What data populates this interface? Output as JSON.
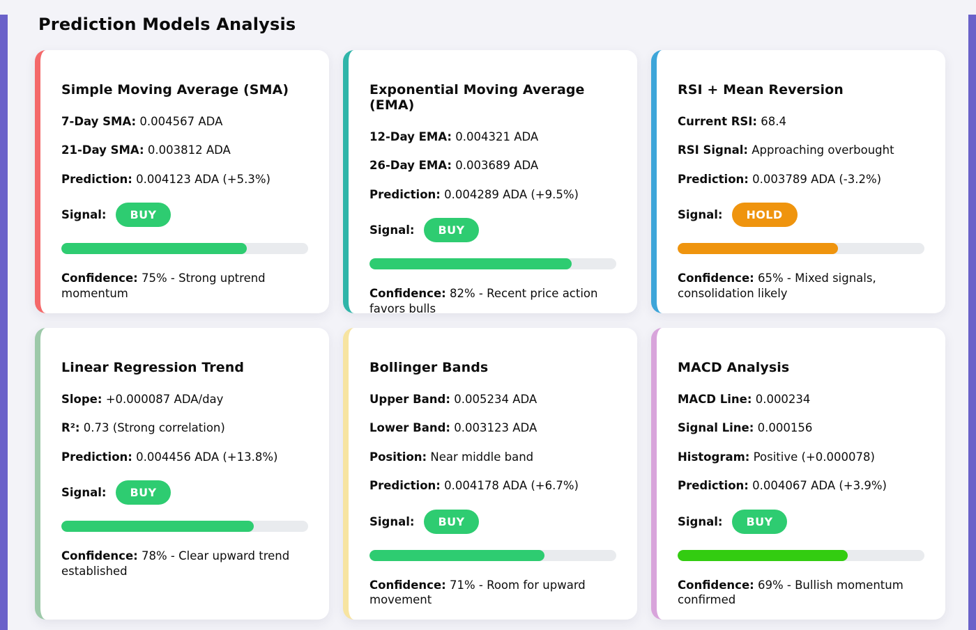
{
  "page": {
    "title": "Prediction Models Analysis",
    "background_color": "#F3F3F8",
    "edge_bar_color": "#6A61C9",
    "progress_track_color": "#E9EBEE"
  },
  "cards": [
    {
      "id": "sma",
      "title": "Simple Moving Average (SMA)",
      "accent_color": "#F4696A",
      "rows": [
        {
          "label": "7-Day SMA:",
          "value": "0.004567 ADA"
        },
        {
          "label": "21-Day SMA:",
          "value": "0.003812 ADA"
        },
        {
          "label": "Prediction:",
          "value": "0.004123 ADA (+5.3%)"
        }
      ],
      "signal_label": "Signal:",
      "signal": "BUY",
      "signal_color": "#2ECC71",
      "confidence_percent": 75,
      "bar_color": "#2ECC71",
      "confidence_label": "Confidence:",
      "confidence_text": "75% - Strong uptrend momentum"
    },
    {
      "id": "ema",
      "title": "Exponential Moving Average (EMA)",
      "accent_color": "#2FB5A9",
      "rows": [
        {
          "label": "12-Day EMA:",
          "value": "0.004321 ADA"
        },
        {
          "label": "26-Day EMA:",
          "value": "0.003689 ADA"
        },
        {
          "label": "Prediction:",
          "value": "0.004289 ADA (+9.5%)"
        }
      ],
      "signal_label": "Signal:",
      "signal": "BUY",
      "signal_color": "#2ECC71",
      "confidence_percent": 82,
      "bar_color": "#2ECC71",
      "confidence_label": "Confidence:",
      "confidence_text": "82% - Recent price action favors bulls"
    },
    {
      "id": "rsi",
      "title": "RSI + Mean Reversion",
      "accent_color": "#3DA5D9",
      "rows": [
        {
          "label": "Current RSI:",
          "value": "68.4"
        },
        {
          "label": "RSI Signal:",
          "value": "Approaching overbought"
        },
        {
          "label": "Prediction:",
          "value": "0.003789 ADA (-3.2%)"
        }
      ],
      "signal_label": "Signal:",
      "signal": "HOLD",
      "signal_color": "#EF940E",
      "confidence_percent": 65,
      "bar_color": "#EF940E",
      "confidence_label": "Confidence:",
      "confidence_text": "65% - Mixed signals, consolidation likely"
    },
    {
      "id": "linear-regression",
      "title": "Linear Regression Trend",
      "accent_color": "#9DC9A9",
      "rows": [
        {
          "label": "Slope:",
          "value": "+0.000087 ADA/day"
        },
        {
          "label": "R²:",
          "value": "0.73 (Strong correlation)"
        },
        {
          "label": "Prediction:",
          "value": "0.004456 ADA (+13.8%)"
        }
      ],
      "signal_label": "Signal:",
      "signal": "BUY",
      "signal_color": "#2ECC71",
      "confidence_percent": 78,
      "bar_color": "#2ECC71",
      "confidence_label": "Confidence:",
      "confidence_text": "78% - Clear upward trend established"
    },
    {
      "id": "bollinger",
      "title": "Bollinger Bands",
      "accent_color": "#F7E4A1",
      "rows": [
        {
          "label": "Upper Band:",
          "value": "0.005234 ADA"
        },
        {
          "label": "Lower Band:",
          "value": "0.003123 ADA"
        },
        {
          "label": "Position:",
          "value": "Near middle band"
        },
        {
          "label": "Prediction:",
          "value": "0.004178 ADA (+6.7%)"
        }
      ],
      "signal_label": "Signal:",
      "signal": "BUY",
      "signal_color": "#2ECC71",
      "confidence_percent": 71,
      "bar_color": "#2ECC71",
      "confidence_label": "Confidence:",
      "confidence_text": "71% - Room for upward movement"
    },
    {
      "id": "macd",
      "title": "MACD Analysis",
      "accent_color": "#D8A4DB",
      "rows": [
        {
          "label": "MACD Line:",
          "value": "0.000234"
        },
        {
          "label": "Signal Line:",
          "value": "0.000156"
        },
        {
          "label": "Histogram:",
          "value": "Positive (+0.000078)"
        },
        {
          "label": "Prediction:",
          "value": "0.004067 ADA (+3.9%)"
        }
      ],
      "signal_label": "Signal:",
      "signal": "BUY",
      "signal_color": "#2ECC71",
      "confidence_percent": 69,
      "bar_color": "#33CC11",
      "confidence_label": "Confidence:",
      "confidence_text": "69% - Bullish momentum confirmed"
    }
  ]
}
